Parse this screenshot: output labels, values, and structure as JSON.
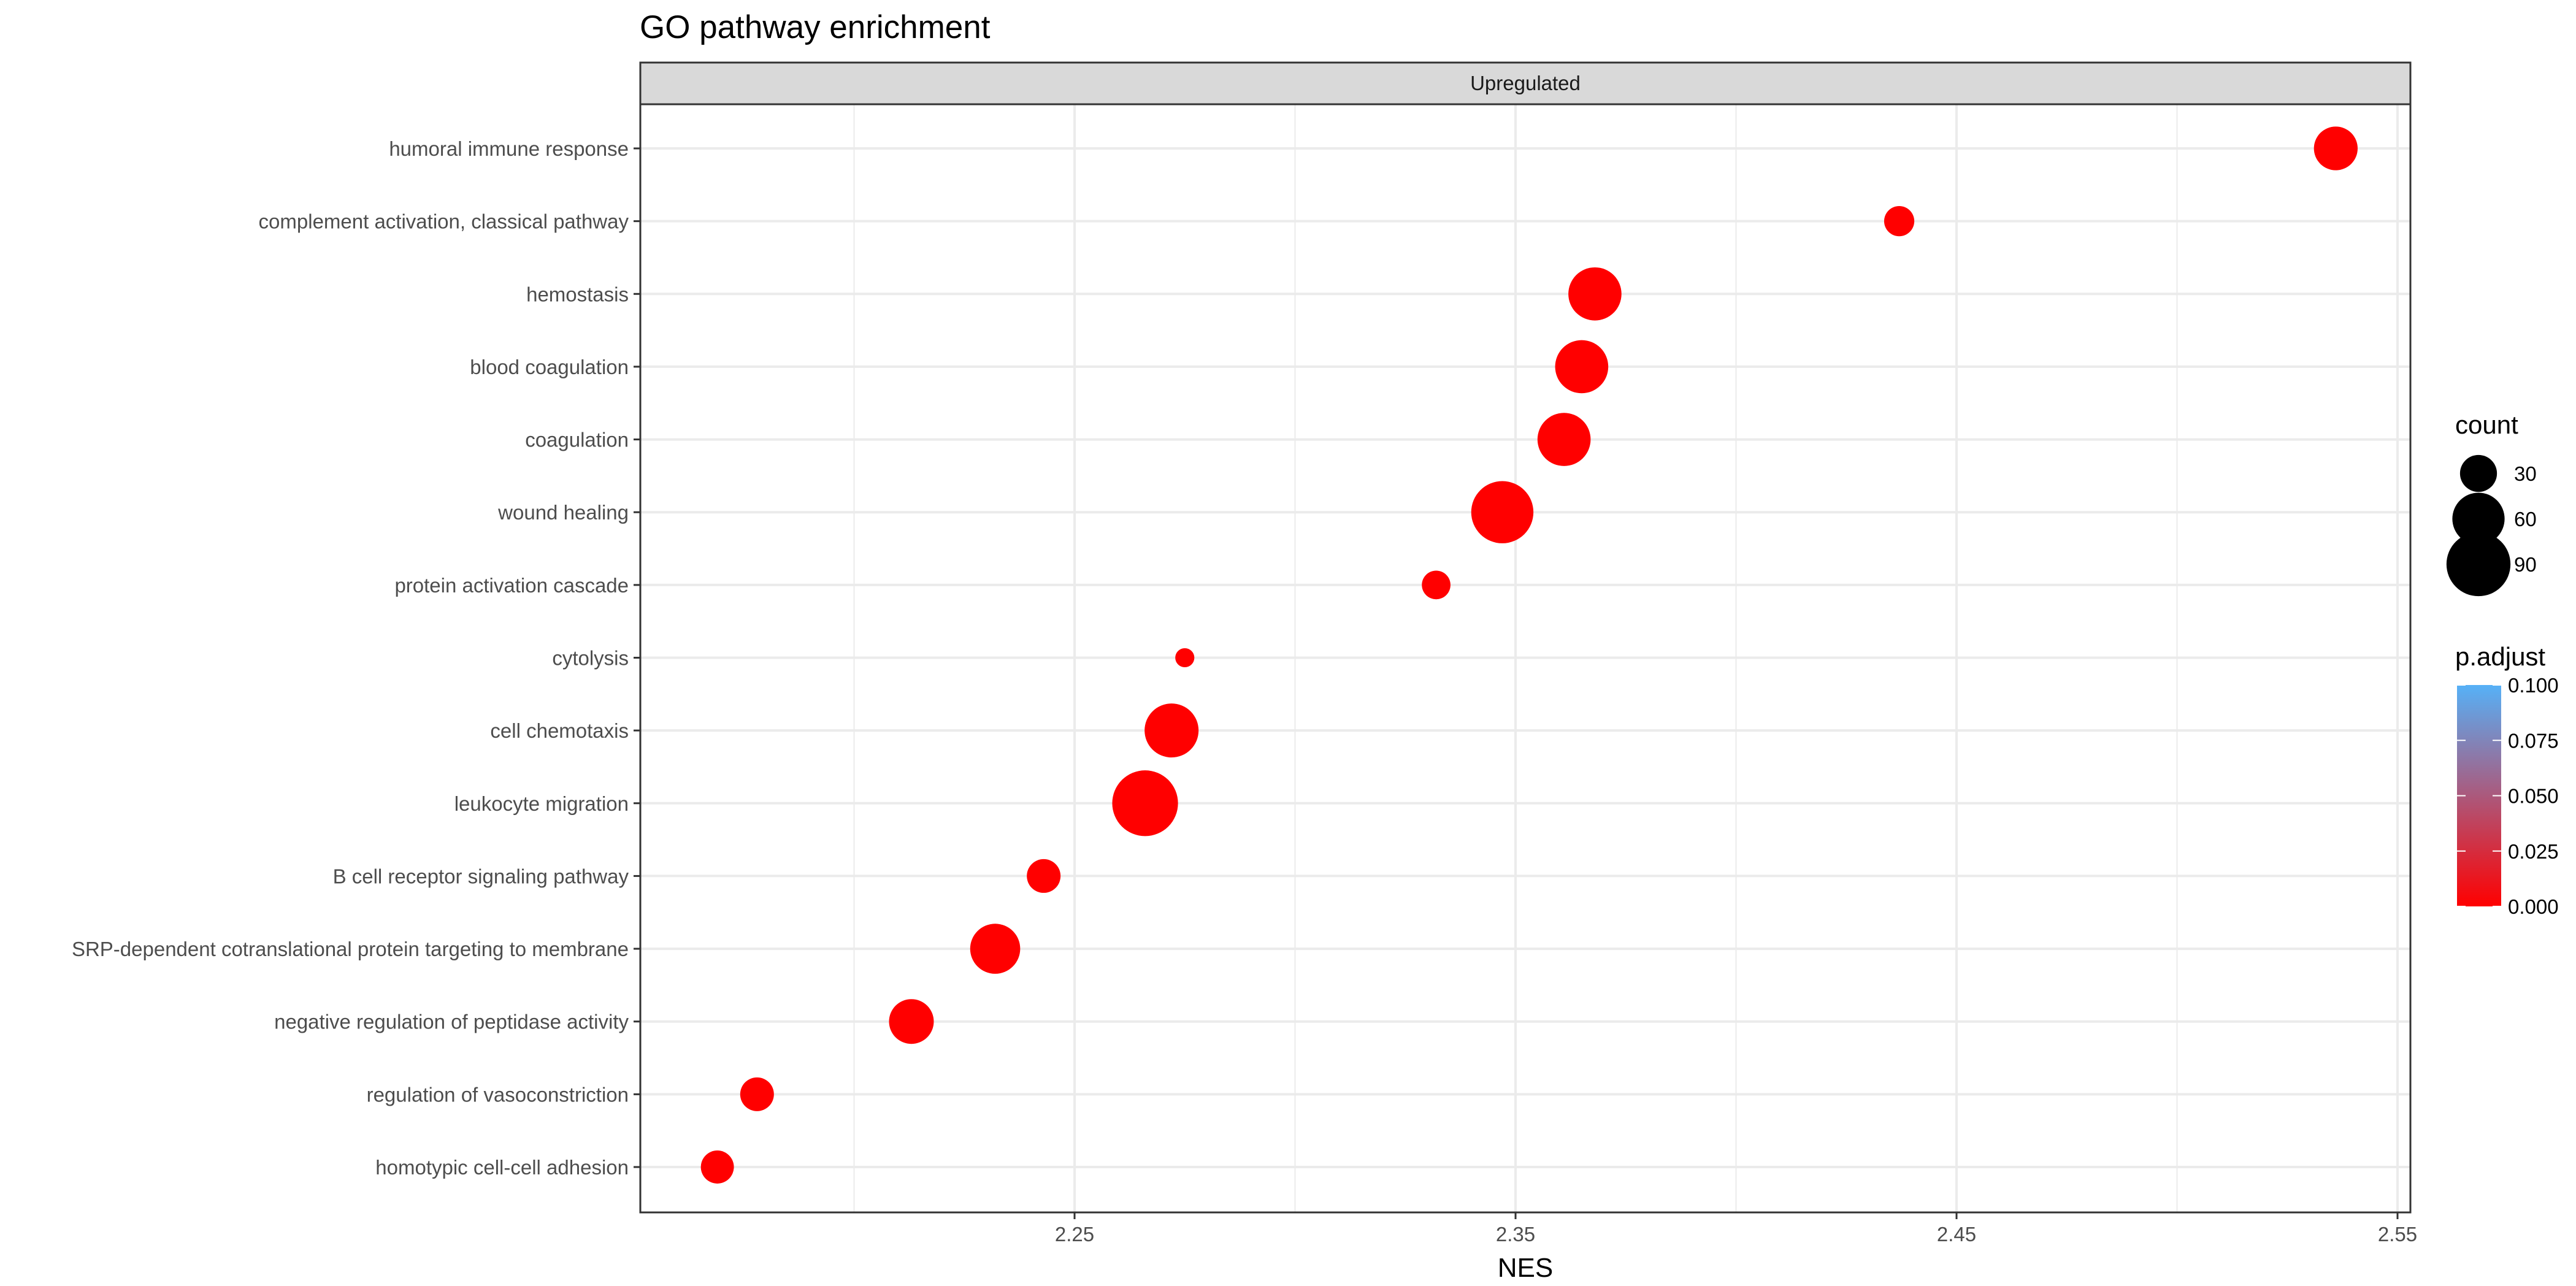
{
  "chart_data": {
    "type": "scatter",
    "title": "GO pathway enrichment",
    "facet_label": "Upregulated",
    "xlabel": "NES",
    "ylabel": "",
    "xlim": [
      2.1,
      2.6
    ],
    "x_ticks": [
      2.25,
      2.35,
      2.45,
      2.55
    ],
    "x_tick_labels": [
      "2.25",
      "2.35",
      "2.45",
      "2.55"
    ],
    "grid": true,
    "legend_position": "right",
    "size_legend": {
      "title": "count",
      "values": [
        30,
        60,
        90
      ],
      "labels": [
        "30",
        "60",
        "90"
      ]
    },
    "color_legend": {
      "title": "p.adjust",
      "low_color": "#ff0000",
      "high_color": "#56b1f7",
      "ticks": [
        0.1,
        0.075,
        0.05,
        0.025,
        0.0
      ],
      "labels": [
        "0.100",
        "0.075",
        "0.050",
        "0.025",
        "0.000"
      ],
      "range": [
        0.0,
        0.1
      ]
    },
    "points": [
      {
        "term": "humoral immune response",
        "NES": 2.536,
        "count": 42,
        "p_adjust": 0.0
      },
      {
        "term": "complement activation, classical pathway",
        "NES": 2.437,
        "count": 20,
        "p_adjust": 0.0
      },
      {
        "term": "hemostasis",
        "NES": 2.368,
        "count": 62,
        "p_adjust": 0.0
      },
      {
        "term": "blood coagulation",
        "NES": 2.365,
        "count": 62,
        "p_adjust": 0.0
      },
      {
        "term": "coagulation",
        "NES": 2.361,
        "count": 62,
        "p_adjust": 0.0
      },
      {
        "term": "wound healing",
        "NES": 2.347,
        "count": 85,
        "p_adjust": 0.0
      },
      {
        "term": "protein activation cascade",
        "NES": 2.332,
        "count": 18,
        "p_adjust": 0.0
      },
      {
        "term": "cytolysis",
        "NES": 2.275,
        "count": 8,
        "p_adjust": 0.0
      },
      {
        "term": "cell chemotaxis",
        "NES": 2.272,
        "count": 64,
        "p_adjust": 0.0
      },
      {
        "term": "leukocyte migration",
        "NES": 2.266,
        "count": 95,
        "p_adjust": 0.0
      },
      {
        "term": "B cell receptor signaling pathway",
        "NES": 2.243,
        "count": 25,
        "p_adjust": 0.0
      },
      {
        "term": "SRP-dependent cotranslational protein targeting to membrane",
        "NES": 2.232,
        "count": 55,
        "p_adjust": 0.0
      },
      {
        "term": "negative regulation of peptidase activity",
        "NES": 2.213,
        "count": 44,
        "p_adjust": 0.0
      },
      {
        "term": "regulation of vasoconstriction",
        "NES": 2.178,
        "count": 25,
        "p_adjust": 0.0
      },
      {
        "term": "homotypic cell-cell adhesion",
        "NES": 2.169,
        "count": 24,
        "p_adjust": 0.0
      }
    ]
  }
}
